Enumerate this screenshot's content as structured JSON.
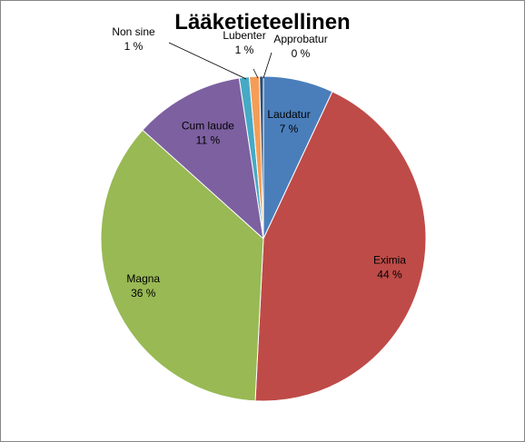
{
  "chart_data": {
    "type": "pie",
    "title": "Lääketieteellinen",
    "legend": "none",
    "slices": [
      {
        "name": "Laudatur",
        "value": 7,
        "label": "7 %",
        "color": "#4a7ebb"
      },
      {
        "name": "Eximia",
        "value": 44,
        "label": "44 %",
        "color": "#be4b48"
      },
      {
        "name": "Magna",
        "value": 36,
        "label": "36 %",
        "color": "#98b954"
      },
      {
        "name": "Cum laude",
        "value": 11,
        "label": "11 %",
        "color": "#7d60a0"
      },
      {
        "name": "Non sine",
        "value": 1,
        "label": "1 %",
        "color": "#46aac5"
      },
      {
        "name": "Lubenter",
        "value": 1,
        "label": "1 %",
        "color": "#f59d56"
      },
      {
        "name": "Approbatur",
        "value": 0,
        "label": "0 %",
        "color": "#2c4d75"
      }
    ]
  }
}
